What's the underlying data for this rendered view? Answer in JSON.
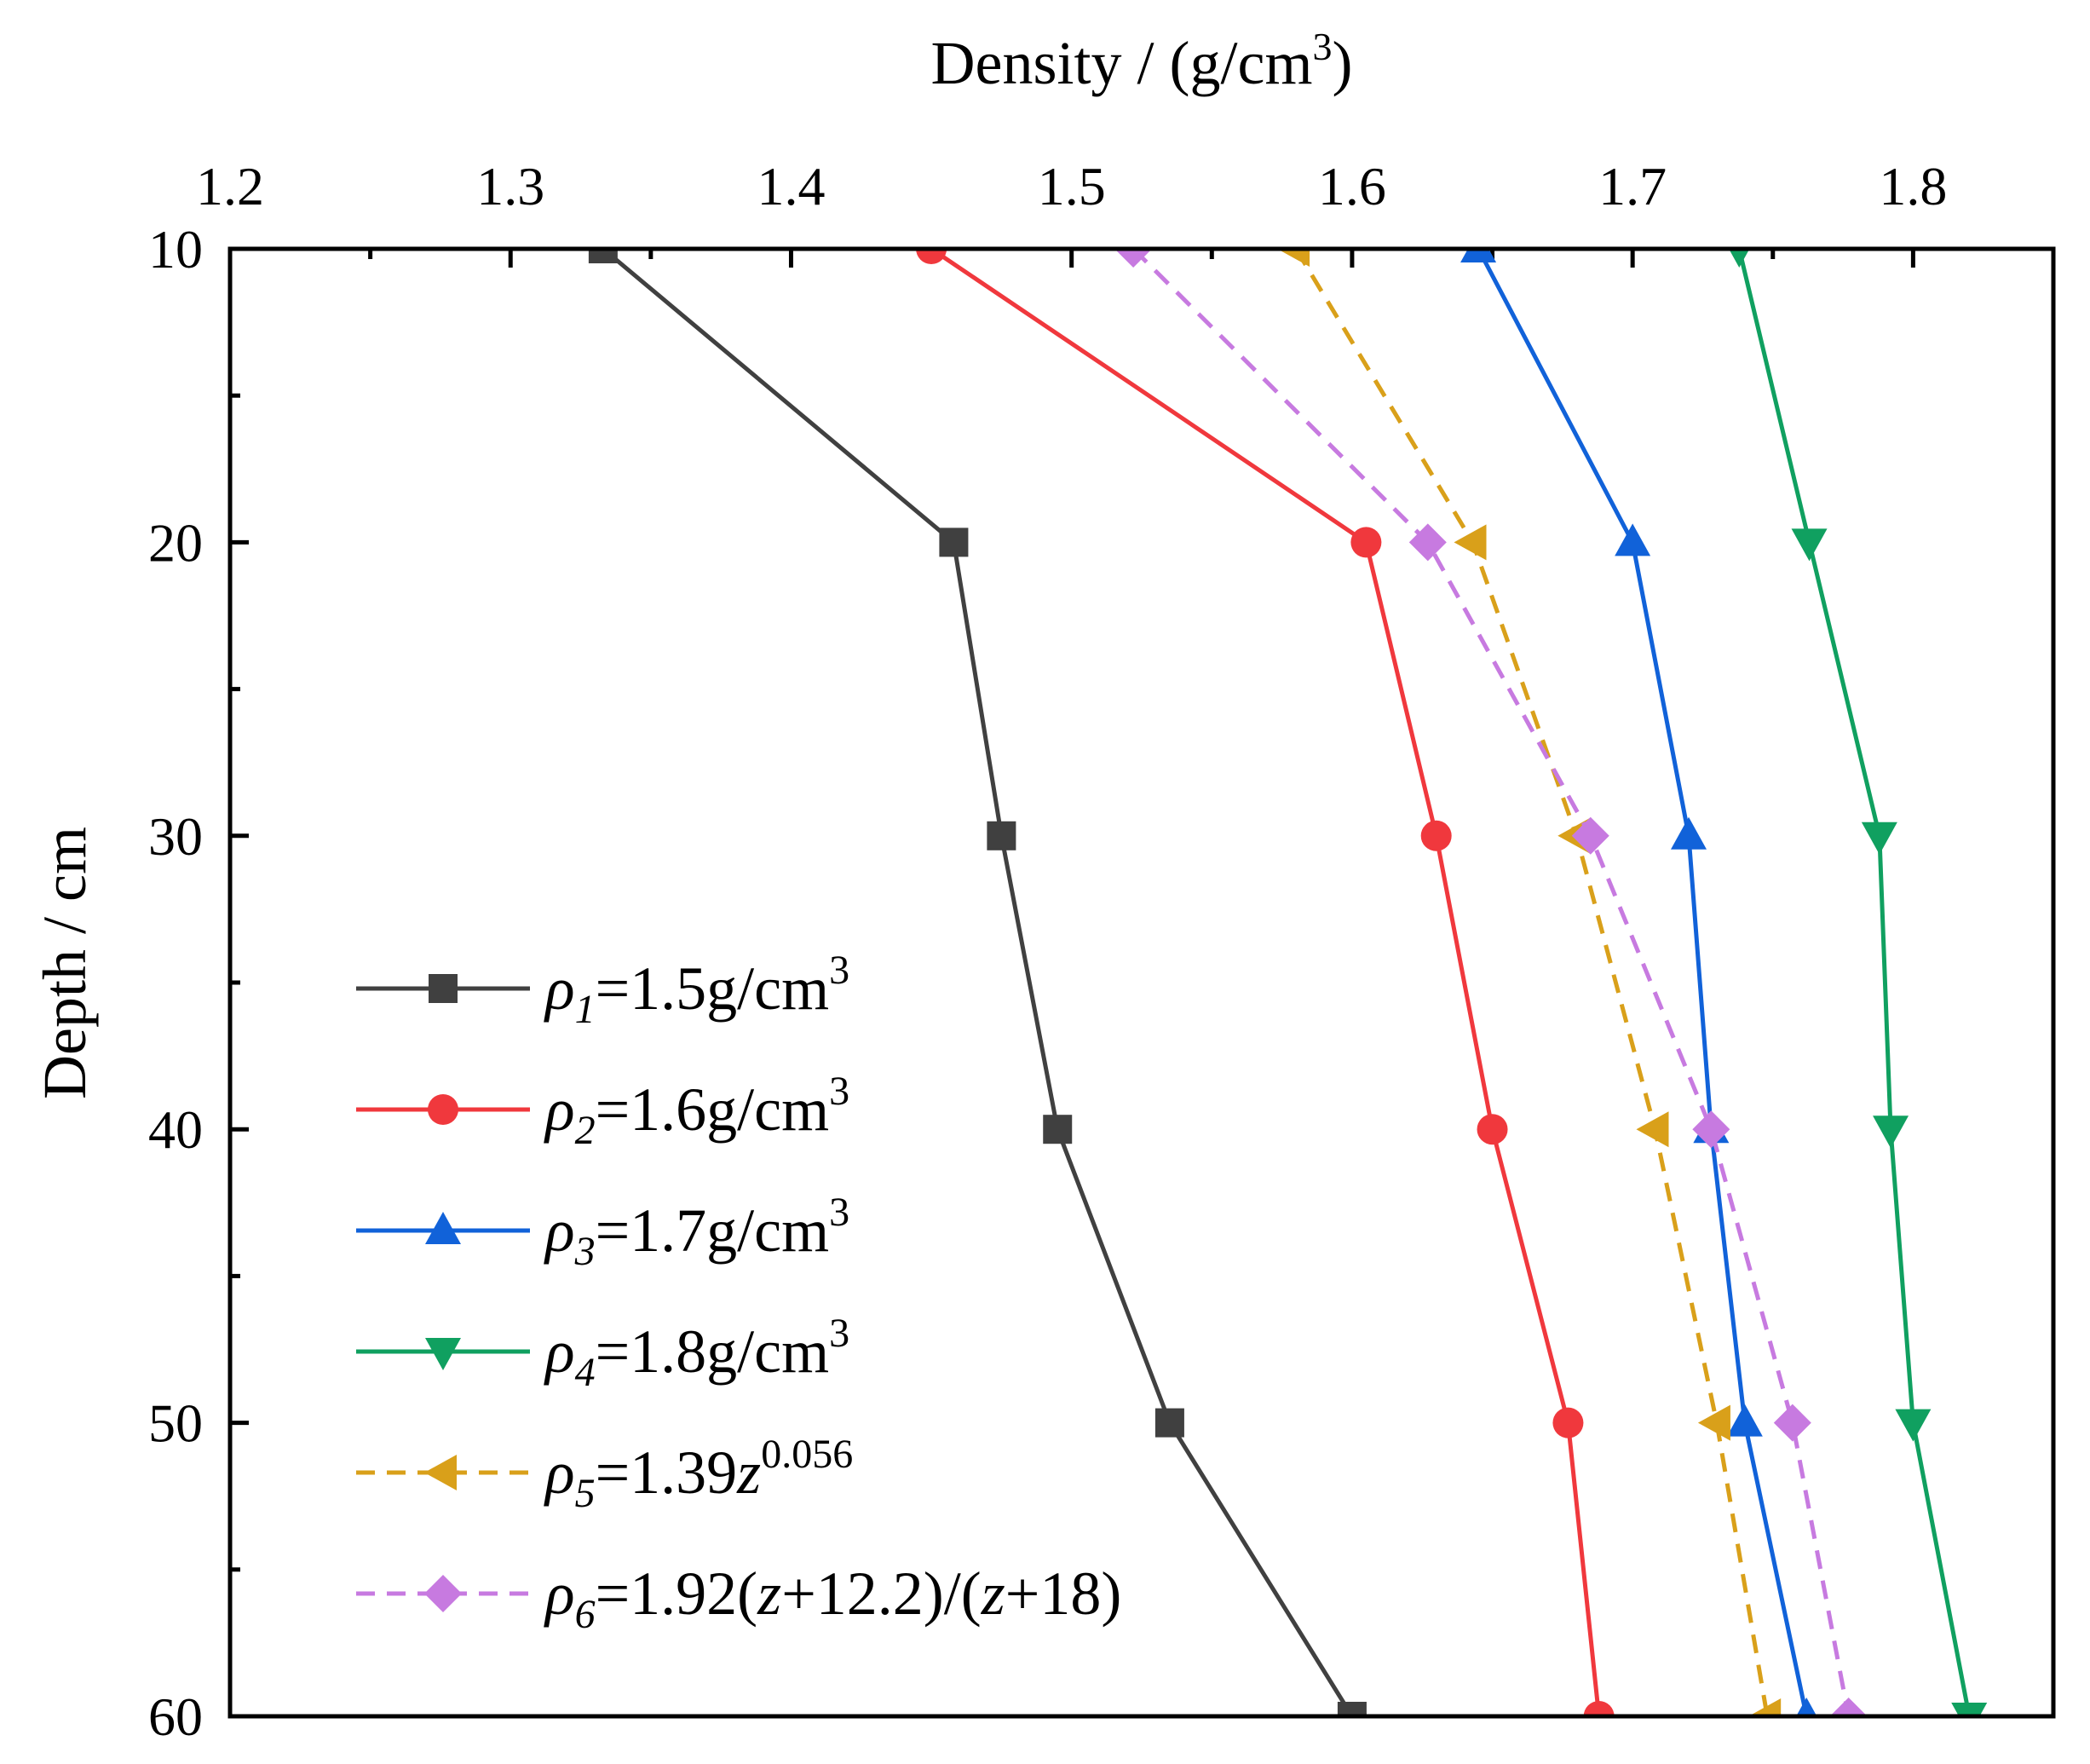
{
  "chart_data": {
    "type": "line",
    "x_axis": {
      "label": "Density / (g/cm",
      "label_sup": "3",
      "label_end": ")",
      "position": "top",
      "range": [
        1.2,
        1.85
      ],
      "ticks": [
        1.2,
        1.3,
        1.4,
        1.5,
        1.6,
        1.7,
        1.8
      ],
      "tick_labels": [
        "1.2",
        "1.3",
        "1.4",
        "1.5",
        "1.6",
        "1.7",
        "1.8"
      ]
    },
    "y_axis": {
      "label": "Depth / cm",
      "range": [
        10,
        60
      ],
      "inverted": true,
      "ticks": [
        10,
        20,
        30,
        40,
        50,
        60
      ],
      "tick_labels": [
        "10",
        "20",
        "30",
        "40",
        "50",
        "60"
      ]
    },
    "depth": [
      10,
      20,
      30,
      40,
      50,
      60
    ],
    "series": [
      {
        "id": "s1",
        "marker": "square",
        "dash": false,
        "color": "#404040",
        "legend": {
          "sym": "ρ",
          "sub": "1",
          "text": "=1.5g/cm",
          "sup": "3"
        },
        "values": [
          1.333,
          1.458,
          1.475,
          1.495,
          1.535,
          1.6
        ]
      },
      {
        "id": "s2",
        "marker": "circle",
        "dash": false,
        "color": "#f0383d",
        "legend": {
          "sym": "ρ",
          "sub": "2",
          "text": "=1.6g/cm",
          "sup": "3"
        },
        "values": [
          1.45,
          1.605,
          1.63,
          1.65,
          1.677,
          1.688
        ]
      },
      {
        "id": "s3",
        "marker": "triangle-up",
        "dash": false,
        "color": "#1162d9",
        "legend": {
          "sym": "ρ",
          "sub": "3",
          "text": "=1.7g/cm",
          "sup": "3"
        },
        "values": [
          1.645,
          1.7,
          1.72,
          1.728,
          1.74,
          1.762
        ]
      },
      {
        "id": "s4",
        "marker": "triangle-down",
        "dash": false,
        "color": "#10a060",
        "legend": {
          "sym": "ρ",
          "sub": "4",
          "text": "=1.8g/cm",
          "sup": "3"
        },
        "values": [
          1.738,
          1.763,
          1.788,
          1.792,
          1.8,
          1.82
        ]
      },
      {
        "id": "s5",
        "marker": "triangle-left",
        "dash": true,
        "color": "#d9a01a",
        "legend": {
          "sym": "ρ",
          "sub": "5",
          "text": "=1.39",
          "ital": "z",
          "sup": "0.056"
        },
        "values": [
          1.58,
          1.643,
          1.68,
          1.708,
          1.73,
          1.748
        ]
      },
      {
        "id": "s6",
        "marker": "diamond",
        "dash": true,
        "color": "#c77ae0",
        "legend": {
          "sym": "ρ",
          "sub": "6",
          "text": "=1.92(",
          "ital": "z",
          "text2": "+12.2)/(",
          "ital2": "z",
          "text3": "+18)"
        },
        "values": [
          1.522,
          1.627,
          1.685,
          1.728,
          1.757,
          1.777
        ]
      }
    ],
    "legend_position": "bottom-left",
    "grid": false
  }
}
